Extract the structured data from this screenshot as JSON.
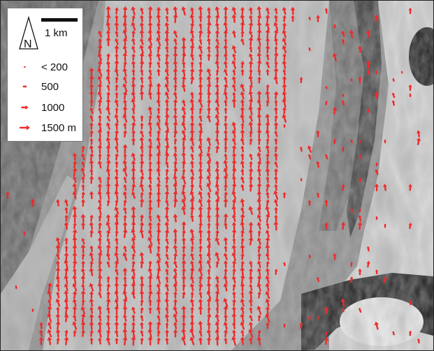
{
  "map": {
    "legend": {
      "north_label": "N",
      "scale_label": "1 km",
      "entries": [
        {
          "label": "< 200",
          "magnitude": 200
        },
        {
          "label": "500",
          "magnitude": 500
        },
        {
          "label": "1000",
          "magnitude": 1000
        },
        {
          "label": "1500 m",
          "magnitude": 1500
        }
      ]
    },
    "colors": {
      "arrow": "#ee2b2b",
      "dark_terrain": "#1a1a1a",
      "mid_terrain": "#8c8c8c",
      "light_terrain": "#e6e6e6"
    },
    "icons": [
      "north-arrow-icon",
      "scale-bar-icon",
      "displacement-arrow-icon"
    ]
  }
}
